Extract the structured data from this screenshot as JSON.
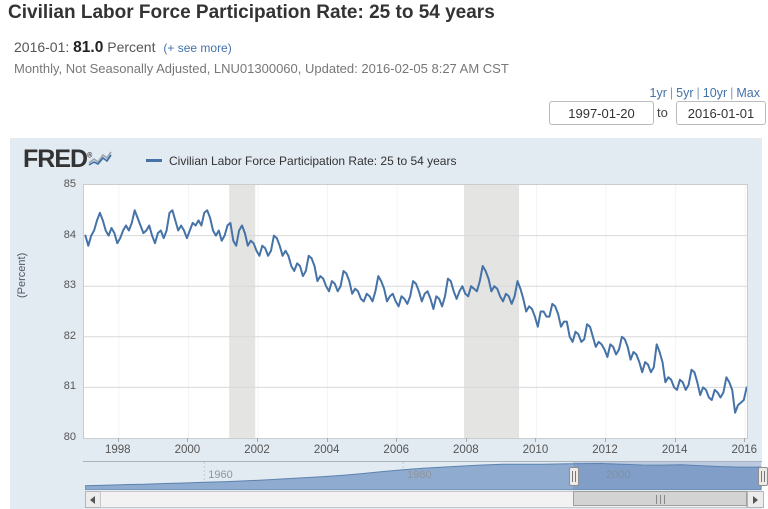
{
  "header": {
    "title": "Civilian Labor Force Participation Rate: 25 to 54 years",
    "obs_date": "2016-01:",
    "obs_value": "81.0",
    "obs_units": "Percent",
    "see_more": "(+ see more)",
    "meta": "Monthly, Not Seasonally Adjusted, LNU01300060, Updated: 2016-02-05 8:27 AM CST"
  },
  "range_controls": {
    "links": [
      "1yr",
      "5yr",
      "10yr",
      "Max"
    ],
    "separator": "|",
    "start_date": "1997-01-20",
    "to_label": "to",
    "end_date": "2016-01-01"
  },
  "chart": {
    "brand": "FRED",
    "legend_label": "Civilian Labor Force Participation Rate: 25 to 54 years",
    "y_axis_title": "(Percent)",
    "colors": {
      "line": "#4572a7",
      "grid": "#d8d8d8",
      "faint_grid": "#f1f4f6",
      "recession_band": "#e4e4e2",
      "container_bg": "#e2eaf2",
      "nav_area_fill": "#8fabd0",
      "nav_area_line": "#5c83ad",
      "link": "#4272a8"
    }
  },
  "chart_data": [
    {
      "type": "line",
      "title": "Civilian Labor Force Participation Rate: 25 to 54 years",
      "ylabel": "(Percent)",
      "frequency": "monthly",
      "x_start_year": 1997,
      "x_end": "2016-01",
      "xlim": [
        1997.0,
        2016.05
      ],
      "ylim": [
        80,
        85
      ],
      "y_ticks": [
        85,
        84,
        83,
        82,
        81,
        80
      ],
      "x_ticks": [
        1998,
        2000,
        2002,
        2004,
        2006,
        2008,
        2010,
        2012,
        2014,
        2016
      ],
      "recession_bands": [
        [
          2001.17,
          2001.92
        ],
        [
          2007.92,
          2009.5
        ]
      ],
      "values": [
        84.0,
        83.8,
        84.0,
        84.1,
        84.3,
        84.45,
        84.3,
        84.1,
        84.0,
        84.15,
        84.05,
        83.85,
        83.95,
        84.1,
        84.2,
        84.1,
        84.25,
        84.5,
        84.35,
        84.2,
        84.05,
        84.1,
        84.2,
        84.0,
        83.85,
        84.05,
        84.1,
        83.95,
        84.1,
        84.45,
        84.5,
        84.3,
        84.1,
        84.2,
        84.1,
        83.95,
        84.1,
        84.25,
        84.2,
        84.3,
        84.2,
        84.45,
        84.5,
        84.35,
        84.1,
        84.0,
        84.1,
        83.9,
        84.0,
        84.2,
        84.25,
        83.9,
        83.8,
        84.1,
        84.2,
        84.05,
        83.8,
        83.9,
        83.85,
        83.7,
        83.6,
        83.8,
        83.75,
        83.6,
        83.7,
        84.0,
        83.95,
        83.8,
        83.6,
        83.7,
        83.6,
        83.4,
        83.3,
        83.45,
        83.4,
        83.2,
        83.3,
        83.6,
        83.55,
        83.4,
        83.1,
        83.2,
        83.15,
        83.0,
        82.9,
        83.1,
        83.05,
        82.9,
        83.0,
        83.3,
        83.25,
        83.1,
        82.85,
        82.95,
        82.9,
        82.75,
        82.7,
        82.85,
        82.8,
        82.7,
        82.9,
        83.2,
        83.1,
        82.95,
        82.7,
        82.8,
        82.85,
        82.7,
        82.6,
        82.8,
        82.75,
        82.65,
        82.8,
        83.1,
        83.05,
        82.9,
        82.7,
        82.85,
        82.9,
        82.75,
        82.55,
        82.8,
        82.75,
        82.6,
        82.8,
        83.15,
        83.1,
        82.9,
        82.75,
        82.9,
        83.0,
        82.85,
        82.8,
        83.0,
        82.95,
        82.9,
        83.1,
        83.4,
        83.3,
        83.15,
        82.9,
        83.0,
        82.95,
        82.8,
        82.7,
        82.85,
        82.8,
        82.65,
        82.8,
        83.1,
        82.95,
        82.75,
        82.5,
        82.6,
        82.55,
        82.4,
        82.2,
        82.5,
        82.5,
        82.4,
        82.4,
        82.65,
        82.6,
        82.45,
        82.2,
        82.3,
        82.3,
        82.0,
        81.9,
        82.1,
        82.05,
        81.9,
        81.95,
        82.25,
        82.2,
        82.0,
        81.8,
        81.9,
        81.85,
        81.75,
        81.6,
        81.85,
        81.8,
        81.65,
        81.75,
        82.0,
        81.95,
        81.8,
        81.55,
        81.7,
        81.65,
        81.5,
        81.3,
        81.5,
        81.45,
        81.3,
        81.4,
        81.85,
        81.7,
        81.5,
        81.1,
        81.2,
        81.15,
        81.0,
        80.95,
        81.15,
        81.1,
        80.95,
        81.05,
        81.35,
        81.3,
        81.1,
        80.85,
        81.0,
        80.95,
        80.8,
        80.75,
        80.95,
        80.9,
        80.8,
        80.9,
        81.2,
        81.1,
        80.95,
        80.5,
        80.65,
        80.7,
        80.75,
        81.0
      ]
    },
    {
      "type": "area",
      "role": "navigator",
      "xlim": [
        1948,
        2016.1
      ],
      "ylim": [
        62,
        84.6
      ],
      "x": [
        1948,
        1950,
        1952,
        1954,
        1956,
        1958,
        1960,
        1962,
        1964,
        1966,
        1968,
        1970,
        1972,
        1974,
        1976,
        1978,
        1980,
        1982,
        1984,
        1986,
        1988,
        1990,
        1992,
        1994,
        1996,
        1998,
        2000,
        2002,
        2004,
        2006,
        2008,
        2010,
        2012,
        2014,
        2016
      ],
      "values": [
        64.8,
        65.2,
        65.8,
        66.2,
        66.8,
        67.2,
        67.8,
        68.3,
        69.0,
        69.8,
        70.8,
        71.8,
        72.8,
        74.0,
        75.5,
        77.2,
        78.8,
        80.0,
        81.0,
        82.0,
        82.9,
        83.5,
        83.6,
        83.6,
        83.8,
        84.1,
        84.2,
        83.6,
        82.9,
        82.8,
        83.0,
        82.2,
        81.5,
        81.0,
        81.0
      ],
      "year_labels": [
        1960,
        1980,
        2000
      ],
      "selected_range": [
        1997.05,
        2016.05
      ]
    }
  ]
}
